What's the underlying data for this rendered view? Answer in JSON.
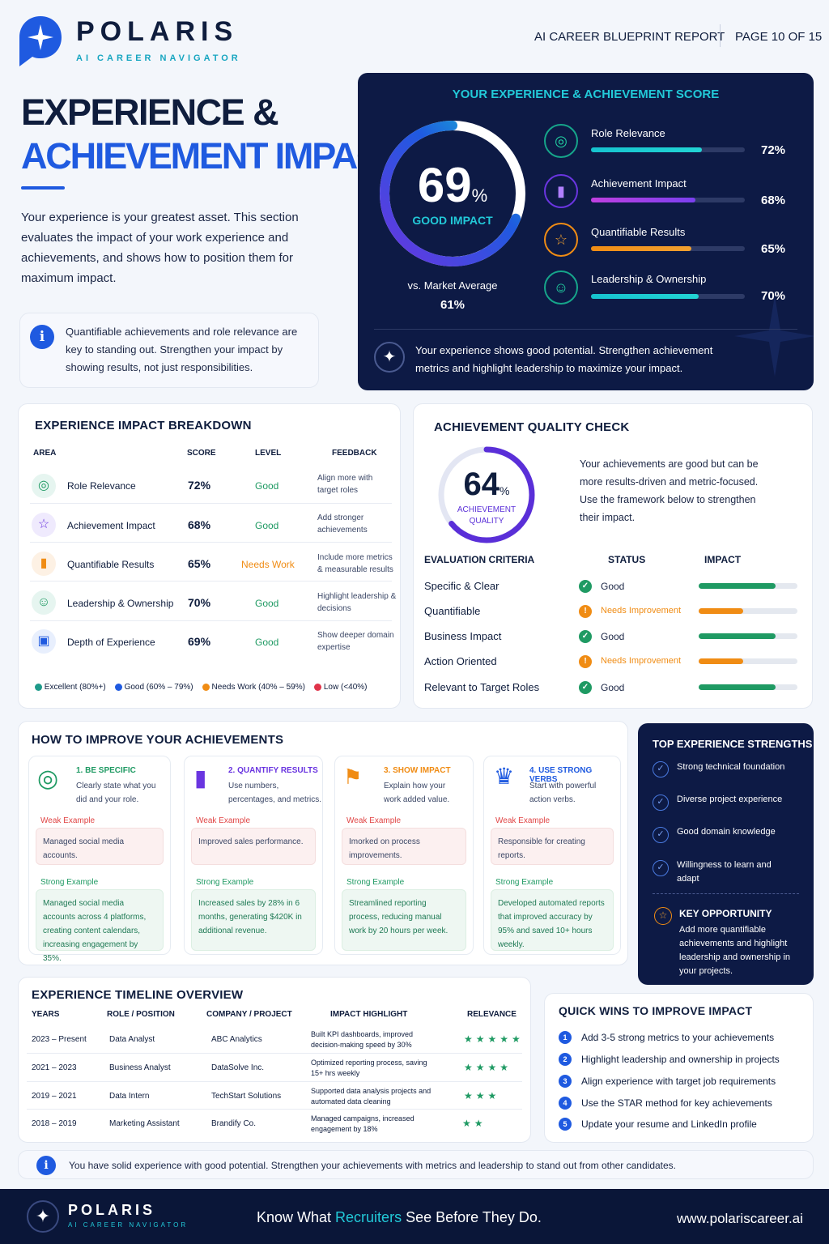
{
  "brand": {
    "name": "POLARIS",
    "tagline": "AI CAREER NAVIGATOR"
  },
  "header": {
    "report": "AI CAREER BLUEPRINT REPORT",
    "page": "PAGE 10 OF 15"
  },
  "hero": {
    "title1": "EXPERIENCE &",
    "title2": "ACHIEVEMENT IMPACT",
    "intro": "Your experience is your greatest asset. This section evaluates the impact of your work experience and achievements, and shows how to position them for maximum impact.",
    "info": "Quantifiable achievements and role relevance are key to standing out. Strengthen your impact by showing results, not just responsibilities."
  },
  "score": {
    "title": "YOUR EXPERIENCE & ACHIEVEMENT SCORE",
    "value": "69",
    "unit": "%",
    "level": "GOOD IMPACT",
    "value_fraction": 0.69,
    "market_label": "vs. Market Average",
    "market_value": "61%",
    "metrics": [
      {
        "label": "Role Relevance",
        "value": "72%",
        "fraction": 0.72
      },
      {
        "label": "Achievement Impact",
        "value": "68%",
        "fraction": 0.68
      },
      {
        "label": "Quantifiable Results",
        "value": "65%",
        "fraction": 0.65
      },
      {
        "label": "Leadership & Ownership",
        "value": "70%",
        "fraction": 0.7
      }
    ],
    "note": "Your experience shows good potential. Strengthen achievement metrics and highlight leadership to maximize your impact."
  },
  "breakdown": {
    "title": "EXPERIENCE IMPACT BREAKDOWN",
    "headers": [
      "AREA",
      "SCORE",
      "LEVEL",
      "FEEDBACK"
    ],
    "rows": [
      {
        "area": "Role Relevance",
        "score": "72%",
        "level": "Good",
        "feedback": "Align more with target roles"
      },
      {
        "area": "Achievement Impact",
        "score": "68%",
        "level": "Good",
        "feedback": "Add stronger achievements"
      },
      {
        "area": "Quantifiable Results",
        "score": "65%",
        "level": "Needs Work",
        "feedback": "Include more metrics & measurable results"
      },
      {
        "area": "Leadership & Ownership",
        "score": "70%",
        "level": "Good",
        "feedback": "Highlight leadership & decisions"
      },
      {
        "area": "Depth of Experience",
        "score": "69%",
        "level": "Good",
        "feedback": "Show deeper domain expertise"
      }
    ],
    "legend": [
      "Excellent (80%+)",
      "Good (60% – 79%)",
      "Needs Work (40% – 59%)",
      "Low (<40%)"
    ],
    "legend_colors": [
      "#1f9a8a",
      "#1f5ae0",
      "#f08c14",
      "#e0344a"
    ]
  },
  "quality": {
    "title": "ACHIEVEMENT QUALITY CHECK",
    "value": "64",
    "unit": "%",
    "label1": "ACHIEVEMENT",
    "label2": "QUALITY",
    "fraction": 0.64,
    "desc": "Your achievements are good but can be more results-driven and metric-focused. Use the framework below to strengthen their impact.",
    "headers": [
      "EVALUATION CRITERIA",
      "STATUS",
      "IMPACT"
    ],
    "rows": [
      {
        "criteria": "Specific & Clear",
        "status": "Good",
        "impact": 0.78
      },
      {
        "criteria": "Quantifiable",
        "status": "Needs Improvement",
        "impact": 0.45
      },
      {
        "criteria": "Business Impact",
        "status": "Good",
        "impact": 0.78
      },
      {
        "criteria": "Action Oriented",
        "status": "Needs Improvement",
        "impact": 0.45
      },
      {
        "criteria": "Relevant to Target Roles",
        "status": "Good",
        "impact": 0.78
      }
    ]
  },
  "improve": {
    "title": "HOW TO IMPROVE YOUR ACHIEVEMENTS",
    "weak_label": "Weak Example",
    "strong_label": "Strong Example",
    "tips": [
      {
        "title": "1. BE SPECIFIC",
        "desc": "Clearly state what you did and your role.",
        "weak": "Managed social media accounts.",
        "strong": "Managed social media accounts across 4 platforms, creating content calendars, increasing engagement by 35%.",
        "color": "#1f9a63"
      },
      {
        "title": "2. QUANTIFY RESULTS",
        "desc": "Use numbers, percentages, and metrics.",
        "weak": "Improved sales performance.",
        "strong": "Increased sales by 28% in 6 months, generating $420K in additional revenue.",
        "color": "#6a35e0"
      },
      {
        "title": "3. SHOW IMPACT",
        "desc": "Explain how your work added value.",
        "weak": "Imorked on process improvements.",
        "strong": "Streamlined reporting process, reducing manual work by 20 hours per week.",
        "color": "#f08c14"
      },
      {
        "title": "4. USE STRONG VERBS",
        "desc": "Start with powerful action verbs.",
        "weak": "Responsible for creating reports.",
        "strong": "Developed automated reports that improved accuracy by 95% and saved 10+ hours weekly.",
        "color": "#1f5ae0"
      }
    ]
  },
  "strengths": {
    "title": "TOP EXPERIENCE STRENGTHS",
    "items": [
      "Strong technical foundation",
      "Diverse project experience",
      "Good domain knowledge",
      "Willingness to learn and adapt"
    ],
    "opp_title": "KEY OPPORTUNITY",
    "opp_text": "Add more quantifiable achievements and highlight leadership and ownership in your projects."
  },
  "timeline": {
    "title": "EXPERIENCE TIMELINE OVERVIEW",
    "headers": [
      "YEARS",
      "ROLE / POSITION",
      "COMPANY / PROJECT",
      "IMPACT HIGHLIGHT",
      "RELEVANCE"
    ],
    "rows": [
      {
        "years": "2023 – Present",
        "role": "Data Analyst",
        "company": "ABC Analytics",
        "impact": "Built KPI dashboards, improved decision-making speed by 30%",
        "stars": 5
      },
      {
        "years": "2021 – 2023",
        "role": "Business Analyst",
        "company": "DataSolve Inc.",
        "impact": "Optimized reporting process, saving 15+ hrs weekly",
        "stars": 4
      },
      {
        "years": "2019 – 2021",
        "role": "Data Intern",
        "company": "TechStart Solutions",
        "impact": "Supported data analysis projects and automated data cleaning",
        "stars": 3
      },
      {
        "years": "2018 – 2019",
        "role": "Marketing Assistant",
        "company": "Brandify Co.",
        "impact": "Managed campaigns, increased engagement by 18%",
        "stars": 2
      }
    ]
  },
  "quickwins": {
    "title": "QUICK WINS TO IMPROVE IMPACT",
    "items": [
      "Add 3-5 strong metrics to your achievements",
      "Highlight leadership and ownership in projects",
      "Align experience with target job requirements",
      "Use the STAR method for key achievements",
      "Update your resume and LinkedIn profile"
    ]
  },
  "bottom_note": "You have solid experience with good potential. Strengthen your achievements with metrics and leadership to stand out from other candidates.",
  "footer": {
    "slogan_a": "Know What ",
    "slogan_b": "Recruiters",
    "slogan_c": " See Before They Do.",
    "url": "www.polariscareer.ai"
  },
  "colors": {
    "accent": "#1f5ae0",
    "navy": "#0d1a45",
    "teal": "#16c3cf",
    "good": "#1f9a63",
    "warn": "#f08c14"
  }
}
